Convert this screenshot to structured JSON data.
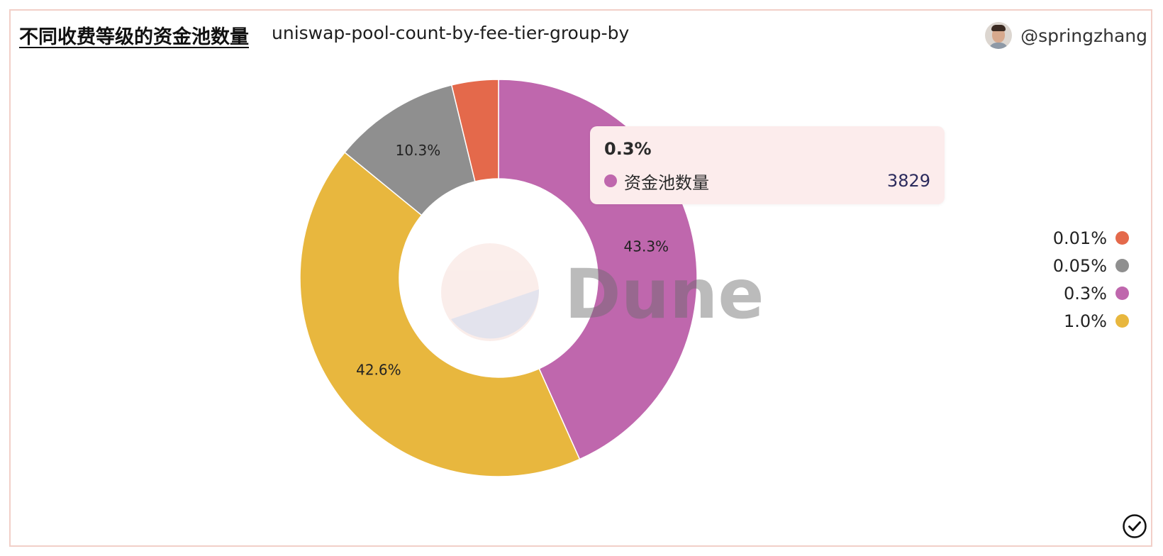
{
  "header": {
    "title": "不同收费等级的资金池数量",
    "subtitle": "uniswap-pool-count-by-fee-tier-group-by",
    "author": "@springzhang"
  },
  "watermark": "Dune",
  "tooltip": {
    "title": "0.3%",
    "series_name": "资金池数量",
    "value": "3829",
    "color": "#bf67ad"
  },
  "chart_data": {
    "type": "pie",
    "donut": true,
    "series_name": "资金池数量",
    "slices": [
      {
        "label": "0.3%",
        "percent": 43.3,
        "value": 3829,
        "color": "#bf67ad",
        "shown_label": "43.3%"
      },
      {
        "label": "1.0%",
        "percent": 42.6,
        "color": "#e8b73e",
        "shown_label": "42.6%"
      },
      {
        "label": "0.05%",
        "percent": 10.3,
        "color": "#8f8f8f",
        "shown_label": "10.3%"
      },
      {
        "label": "0.01%",
        "percent": 3.8,
        "color": "#e4694b",
        "shown_label": ""
      }
    ],
    "legend": {
      "position": "right",
      "items": [
        {
          "label": "0.01%",
          "color": "#e4694b"
        },
        {
          "label": "0.05%",
          "color": "#8f8f8f"
        },
        {
          "label": "0.3%",
          "color": "#bf67ad"
        },
        {
          "label": "1.0%",
          "color": "#e8b73e"
        }
      ]
    }
  }
}
